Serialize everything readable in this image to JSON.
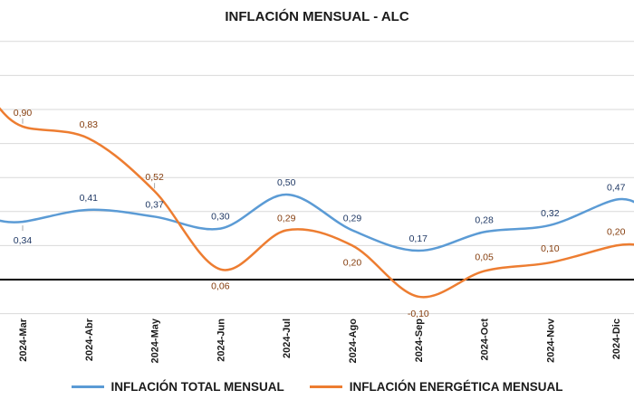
{
  "chart_data": {
    "type": "line",
    "title": "INFLACIÓN MENSUAL - ALC",
    "categories": [
      "2024-Mar",
      "2024-Abr",
      "2024-May",
      "2024-Jun",
      "2024-Jul",
      "2024-Ago",
      "2024-Sep",
      "2024-Oct",
      "2024-Nov",
      "2024-Dic"
    ],
    "series": [
      {
        "name": "INFLACIÓN TOTAL MENSUAL",
        "color": "#5b9bd5",
        "label_color": "#1f3864",
        "values": [
          0.34,
          0.41,
          0.37,
          0.3,
          0.5,
          0.29,
          0.17,
          0.28,
          0.32,
          0.47
        ]
      },
      {
        "name": "INFLACIÓN ENERGÉTICA MENSUAL",
        "color": "#ed7d31",
        "label_color": "#843c0c",
        "values": [
          0.9,
          0.83,
          0.52,
          0.06,
          0.29,
          0.2,
          -0.1,
          0.05,
          0.1,
          0.2
        ]
      }
    ],
    "data_labels": {
      "total": [
        "0,34",
        "0,41",
        "0,37",
        "0,30",
        "0,50",
        "0,29",
        "0,17",
        "0,28",
        "0,32",
        "0,47"
      ],
      "energy": [
        "0,90",
        "0,83",
        "0,52",
        "0,06",
        "0,29",
        "0,20",
        "-0,10",
        "0,05",
        "0,10",
        "0,20"
      ]
    },
    "gridlines": true,
    "zero_line": true,
    "legend_position": "bottom"
  }
}
